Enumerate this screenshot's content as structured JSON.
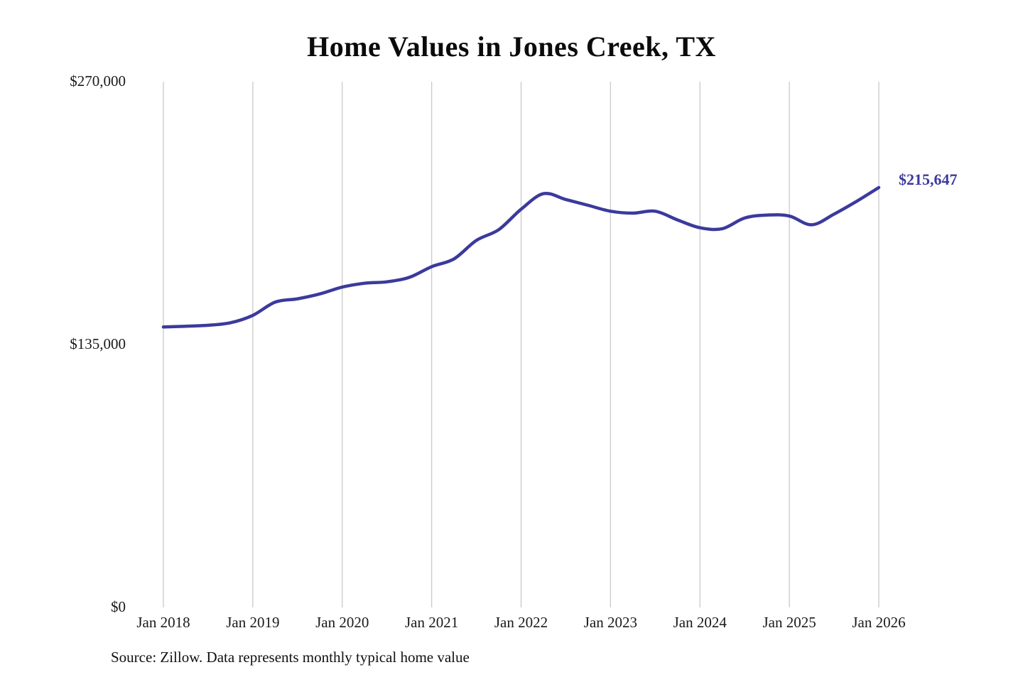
{
  "chart_data": {
    "type": "line",
    "title": "Home Values in Jones Creek, TX",
    "source": "Source: Zillow. Data represents monthly typical home value",
    "end_label": "$215,647",
    "line_color": "#3b3a9c",
    "grid_color": "#c9c9c9",
    "grid": "vertical-only",
    "legend": "none",
    "ylim": [
      0,
      270000
    ],
    "y_ticks": [
      {
        "label": "$0",
        "value": 0
      },
      {
        "label": "$135,000",
        "value": 135000
      },
      {
        "label": "$270,000",
        "value": 270000
      }
    ],
    "year_ticks": [
      {
        "label": "Jan 2018",
        "t": 0
      },
      {
        "label": "Jan 2019",
        "t": 12
      },
      {
        "label": "Jan 2020",
        "t": 24
      },
      {
        "label": "Jan 2021",
        "t": 36
      },
      {
        "label": "Jan 2022",
        "t": 48
      },
      {
        "label": "Jan 2023",
        "t": 60
      },
      {
        "label": "Jan 2024",
        "t": 72
      },
      {
        "label": "Jan 2025",
        "t": 84
      },
      {
        "label": "Jan 2026",
        "t": 96
      }
    ],
    "points": [
      {
        "t": 0,
        "v": 144000
      },
      {
        "t": 3,
        "v": 144400
      },
      {
        "t": 6,
        "v": 144900
      },
      {
        "t": 9,
        "v": 146200
      },
      {
        "t": 12,
        "v": 150000
      },
      {
        "t": 15,
        "v": 156800
      },
      {
        "t": 18,
        "v": 158500
      },
      {
        "t": 21,
        "v": 161000
      },
      {
        "t": 24,
        "v": 164500
      },
      {
        "t": 27,
        "v": 166500
      },
      {
        "t": 30,
        "v": 167200
      },
      {
        "t": 33,
        "v": 169500
      },
      {
        "t": 36,
        "v": 175000
      },
      {
        "t": 39,
        "v": 179000
      },
      {
        "t": 42,
        "v": 188500
      },
      {
        "t": 45,
        "v": 194000
      },
      {
        "t": 48,
        "v": 204500
      },
      {
        "t": 51,
        "v": 212500
      },
      {
        "t": 54,
        "v": 209500
      },
      {
        "t": 57,
        "v": 206500
      },
      {
        "t": 60,
        "v": 203500
      },
      {
        "t": 63,
        "v": 202500
      },
      {
        "t": 66,
        "v": 203500
      },
      {
        "t": 69,
        "v": 199000
      },
      {
        "t": 72,
        "v": 195000
      },
      {
        "t": 75,
        "v": 194500
      },
      {
        "t": 78,
        "v": 200000
      },
      {
        "t": 81,
        "v": 201500
      },
      {
        "t": 84,
        "v": 201000
      },
      {
        "t": 87,
        "v": 196500
      },
      {
        "t": 90,
        "v": 202000
      },
      {
        "t": 93,
        "v": 208500
      },
      {
        "t": 96,
        "v": 215647
      }
    ]
  }
}
